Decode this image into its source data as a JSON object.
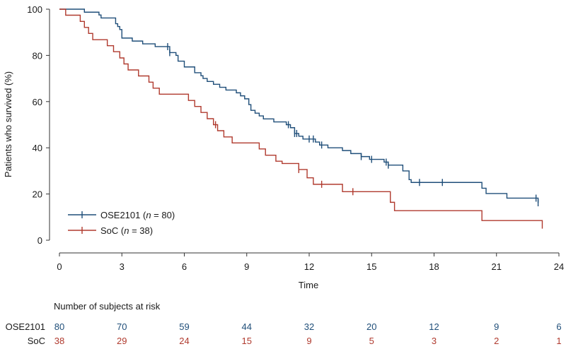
{
  "chart_data": {
    "type": "line",
    "subtype": "kaplan-meier",
    "xlabel": "Time",
    "ylabel": "Patients who survived (%)",
    "xlim": [
      0,
      24
    ],
    "ylim": [
      0,
      100
    ],
    "x_ticks": [
      0,
      3,
      6,
      9,
      12,
      15,
      18,
      21,
      24
    ],
    "y_ticks": [
      0,
      20,
      40,
      60,
      80,
      100
    ],
    "legend_position": "bottom-left",
    "series": [
      {
        "name": "OSE2101",
        "n_label": "n = 80",
        "color": "#1f4e79",
        "steps": [
          [
            0,
            100
          ],
          [
            1.2,
            98.7
          ],
          [
            1.9,
            97.5
          ],
          [
            2.0,
            96.2
          ],
          [
            2.7,
            93.7
          ],
          [
            2.8,
            92.5
          ],
          [
            2.9,
            91.2
          ],
          [
            3.0,
            87.5
          ],
          [
            3.5,
            86.2
          ],
          [
            4.0,
            85.0
          ],
          [
            4.6,
            83.8
          ],
          [
            5.3,
            81.2
          ],
          [
            5.6,
            80.0
          ],
          [
            5.7,
            77.5
          ],
          [
            6.0,
            75.0
          ],
          [
            6.5,
            72.5
          ],
          [
            6.8,
            71.2
          ],
          [
            6.9,
            70.0
          ],
          [
            7.1,
            68.7
          ],
          [
            7.4,
            67.5
          ],
          [
            7.7,
            66.2
          ],
          [
            8.0,
            65.0
          ],
          [
            8.5,
            63.8
          ],
          [
            8.7,
            62.5
          ],
          [
            8.9,
            61.2
          ],
          [
            9.1,
            58.7
          ],
          [
            9.2,
            56.2
          ],
          [
            9.4,
            55.0
          ],
          [
            9.6,
            53.8
          ],
          [
            9.8,
            52.5
          ],
          [
            10.3,
            51.2
          ],
          [
            10.9,
            50.0
          ],
          [
            11.1,
            48.7
          ],
          [
            11.3,
            46.2
          ],
          [
            11.5,
            45.0
          ],
          [
            11.7,
            43.8
          ],
          [
            12.3,
            42.5
          ],
          [
            12.5,
            41.2
          ],
          [
            12.9,
            40.0
          ],
          [
            13.6,
            38.8
          ],
          [
            14.0,
            37.5
          ],
          [
            14.5,
            36.2
          ],
          [
            14.9,
            35.0
          ],
          [
            15.6,
            33.8
          ],
          [
            15.8,
            32.5
          ],
          [
            16.5,
            30.0
          ],
          [
            16.8,
            26.2
          ],
          [
            16.9,
            25.0
          ],
          [
            20.3,
            22.5
          ],
          [
            20.5,
            20.2
          ],
          [
            21.5,
            18.2
          ],
          [
            23.0,
            16.2
          ]
        ],
        "end_x": 23.0,
        "censor": [
          5.2,
          5.3,
          11.0,
          11.3,
          11.4,
          12.0,
          12.2,
          12.6,
          14.5,
          15.0,
          15.7,
          15.8,
          17.3,
          18.4,
          22.9,
          23.0
        ]
      },
      {
        "name": "SoC",
        "n_label": "n = 38",
        "color": "#b03a2e",
        "steps": [
          [
            0,
            100
          ],
          [
            0.3,
            97.4
          ],
          [
            1.0,
            94.7
          ],
          [
            1.2,
            92.1
          ],
          [
            1.4,
            89.5
          ],
          [
            1.6,
            86.8
          ],
          [
            2.3,
            84.2
          ],
          [
            2.6,
            81.6
          ],
          [
            2.9,
            78.9
          ],
          [
            3.1,
            76.3
          ],
          [
            3.3,
            73.7
          ],
          [
            3.8,
            71.1
          ],
          [
            4.3,
            68.4
          ],
          [
            4.5,
            65.8
          ],
          [
            4.8,
            63.2
          ],
          [
            6.2,
            60.5
          ],
          [
            6.5,
            57.9
          ],
          [
            6.8,
            55.3
          ],
          [
            7.1,
            52.6
          ],
          [
            7.4,
            50.0
          ],
          [
            7.6,
            47.4
          ],
          [
            7.9,
            44.7
          ],
          [
            8.3,
            42.1
          ],
          [
            9.6,
            39.5
          ],
          [
            9.9,
            36.8
          ],
          [
            10.4,
            34.2
          ],
          [
            10.7,
            33.2
          ],
          [
            11.5,
            30.6
          ],
          [
            11.9,
            27.0
          ],
          [
            12.2,
            24.2
          ],
          [
            13.6,
            21.0
          ],
          [
            15.9,
            16.4
          ],
          [
            16.1,
            12.8
          ],
          [
            20.3,
            8.5
          ],
          [
            23.2,
            5.0
          ]
        ],
        "end_x": 23.2,
        "censor": [
          7.5,
          11.5,
          12.6,
          14.1
        ]
      }
    ],
    "risk_table": {
      "title": "Number of subjects at risk",
      "time_points": [
        0,
        3,
        6,
        9,
        12,
        15,
        18,
        21,
        24
      ],
      "rows": [
        {
          "label": "OSE2101",
          "color": "#1f4e79",
          "values": [
            "80",
            "70",
            "59",
            "44",
            "32",
            "20",
            "12",
            "9",
            "6"
          ]
        },
        {
          "label": "SoC",
          "color": "#b03a2e",
          "values": [
            "38",
            "29",
            "24",
            "15",
            "9",
            "5",
            "3",
            "2",
            "1"
          ]
        }
      ]
    }
  }
}
